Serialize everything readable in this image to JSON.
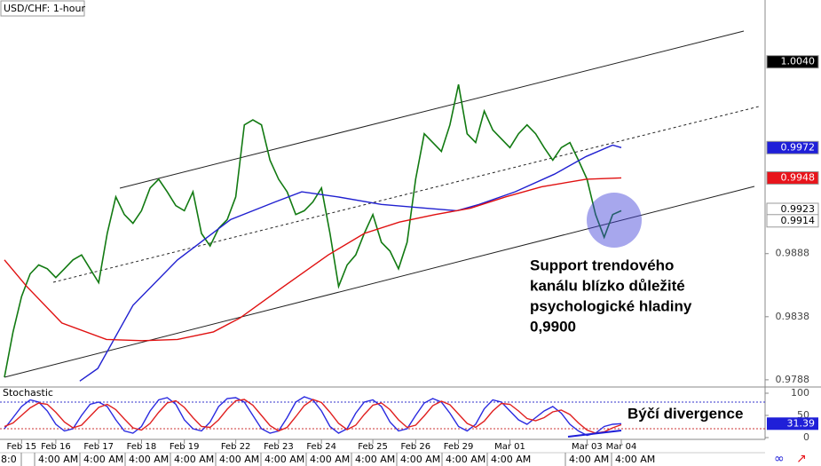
{
  "chart_data": [
    {
      "type": "line",
      "title": "USD/CHF: 1-hour",
      "categories": [
        null,
        null,
        "Feb 15",
        null,
        null,
        null,
        "Feb 16",
        null,
        null,
        null,
        null,
        "Feb 17",
        null,
        null,
        null,
        null,
        "Feb 18",
        null,
        null,
        null,
        null,
        "Feb 19",
        null,
        null,
        null,
        null,
        null,
        "Feb 22",
        null,
        null,
        null,
        null,
        "Feb 23",
        null,
        null,
        null,
        null,
        "Feb 24",
        null,
        null,
        null,
        null,
        null,
        "Feb 25",
        null,
        null,
        null,
        null,
        "Feb 26",
        null,
        null,
        null,
        null,
        "Feb 29",
        null,
        null,
        null,
        null,
        null,
        "Mar 01",
        null,
        null,
        null,
        null,
        null,
        null,
        null,
        null,
        "Mar 03",
        null,
        null,
        null,
        "Mar 04"
      ],
      "xlim": [
        0,
        72
      ],
      "ylim": [
        0.9783,
        1.0089
      ],
      "yticks": [
        0.9788,
        0.9838,
        0.9888
      ],
      "price_labels": [
        {
          "value": 1.004,
          "label": "1.0040",
          "color": "#000000"
        },
        {
          "value": 0.9972,
          "label": "0.9972",
          "color": "#1f1fd8"
        },
        {
          "value": 0.9948,
          "label": "0.9948",
          "color": "#e8141b"
        },
        {
          "value": 0.9923,
          "label": "0.9923",
          "color": "#ffffff"
        },
        {
          "value": 0.9914,
          "label": "0.9914",
          "color": "#ffffff"
        }
      ],
      "series": [
        {
          "color": "#127a12",
          "values": [
            0.979,
            0.9826,
            0.9854,
            0.9872,
            0.9879,
            0.9876,
            0.9869,
            0.9876,
            0.9883,
            0.9887,
            0.9876,
            0.9865,
            0.9904,
            0.9933,
            0.9919,
            0.9912,
            0.9922,
            0.994,
            0.9947,
            0.9937,
            0.9926,
            0.9922,
            0.9937,
            0.9904,
            0.9894,
            0.9908,
            0.9915,
            0.9933,
            0.999,
            0.9994,
            0.999,
            0.9962,
            0.9947,
            0.9937,
            0.9919,
            0.9922,
            0.9929,
            0.994,
            0.9904,
            0.9862,
            0.9879,
            0.9887,
            0.9904,
            0.9919,
            0.9897,
            0.989,
            0.9876,
            0.9897,
            0.9947,
            0.9983,
            0.9976,
            0.9969,
            0.999,
            1.0022,
            0.9983,
            0.9976,
            1.0001,
            0.9986,
            0.9979,
            0.9972,
            0.9983,
            0.999,
            0.9983,
            0.9972,
            0.9962,
            0.9972,
            0.9976,
            0.9962,
            0.9947,
            0.9919,
            0.9901,
            0.9919,
            0.9922
          ]
        },
        {
          "color": "#2020d0",
          "x": [
            8.8,
            10.9,
            15.0,
            20.2,
            26.4,
            31.6,
            34.7,
            38.9,
            44.0,
            49.2,
            52.8,
            55.4,
            59.6,
            64.2,
            67.9,
            71.0,
            72
          ],
          "values": [
            0.9787,
            0.9797,
            0.9847,
            0.9883,
            0.9915,
            0.9929,
            0.9937,
            0.9933,
            0.9927,
            0.9924,
            0.9922,
            0.9927,
            0.9937,
            0.9951,
            0.9965,
            0.9974,
            0.9972
          ]
        },
        {
          "color": "#e01010",
          "x": [
            0,
            2.6,
            6.7,
            11.9,
            16.1,
            20.2,
            24.4,
            27.5,
            32.6,
            37.8,
            42.0,
            46.1,
            50.3,
            54.4,
            58.5,
            62.7,
            67.9,
            72
          ],
          "values": [
            0.9883,
            0.9862,
            0.9833,
            0.982,
            0.9819,
            0.982,
            0.9826,
            0.9837,
            0.9862,
            0.9887,
            0.9904,
            0.9913,
            0.9919,
            0.9924,
            0.9933,
            0.9941,
            0.9947,
            0.9948
          ]
        }
      ],
      "annotations": [
        "Support trendového",
        "kanálu blízko důležité",
        "psychologické hladiny",
        "0,9900"
      ],
      "time_labels": [
        "8:0",
        "4:00 AM",
        "4:00 AM",
        "4:00 AM",
        "4:00 AM",
        "4:00 AM",
        "4:00 AM",
        "4:00 AM",
        "4:00 AM",
        "4:00 AM",
        "4:00 AM",
        "4:00 AM",
        "4:00 AM",
        "4:00 AM"
      ]
    },
    {
      "type": "line",
      "title": "Stochastic",
      "xlim": [
        0,
        72
      ],
      "ylim": [
        0,
        100
      ],
      "yticks": [
        0,
        50,
        100
      ],
      "levels": [
        {
          "value": 80,
          "color": "#3333cc"
        },
        {
          "value": 20,
          "color": "#cc3333"
        }
      ],
      "last_value": 31.39,
      "series": [
        {
          "color": "#2a2ae0",
          "values": [
            20,
            45,
            70,
            85,
            80,
            60,
            30,
            15,
            20,
            50,
            75,
            80,
            70,
            40,
            15,
            10,
            25,
            60,
            85,
            90,
            75,
            40,
            20,
            15,
            35,
            70,
            88,
            90,
            80,
            50,
            20,
            10,
            15,
            45,
            80,
            92,
            85,
            60,
            25,
            10,
            20,
            55,
            80,
            85,
            70,
            35,
            15,
            20,
            50,
            78,
            88,
            80,
            55,
            25,
            15,
            30,
            65,
            85,
            80,
            60,
            40,
            30,
            45,
            60,
            70,
            55,
            30,
            15,
            5,
            10,
            25,
            30,
            31.39
          ]
        },
        {
          "color": "#e02020",
          "values": [
            25,
            33,
            50,
            67,
            78,
            75,
            57,
            35,
            22,
            28,
            48,
            68,
            75,
            63,
            42,
            22,
            17,
            32,
            57,
            78,
            83,
            68,
            45,
            25,
            23,
            40,
            64,
            83,
            86,
            73,
            50,
            27,
            15,
            23,
            47,
            72,
            86,
            79,
            57,
            32,
            18,
            28,
            52,
            73,
            78,
            63,
            40,
            23,
            28,
            49,
            72,
            82,
            74,
            53,
            32,
            23,
            37,
            60,
            77,
            75,
            60,
            43,
            38,
            45,
            58,
            62,
            52,
            33,
            17,
            10,
            13,
            22,
            29
          ]
        }
      ],
      "annotations": [
        "Býčí divergence"
      ]
    }
  ]
}
